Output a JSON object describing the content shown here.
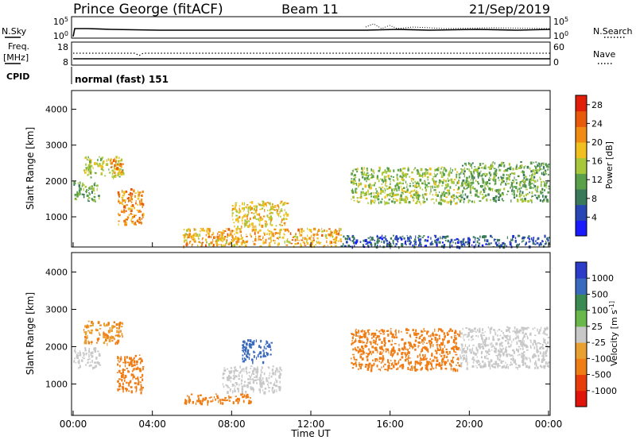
{
  "header": {
    "station": "Prince George (fitACF)",
    "beam": "Beam 11",
    "date": "21/Sep/2019"
  },
  "top_panels": {
    "nsky_label": "N.Sky",
    "nsky_ticks": [
      "10^5",
      "10^0"
    ],
    "nsearch_label": "N.Search",
    "nsearch_ticks": [
      "10^5",
      "10^0"
    ],
    "freq_label": "Freq.",
    "freq_unit": "[MHz]",
    "freq_ticks": [
      "18",
      "8"
    ],
    "nave_label": "Nave",
    "nave_ticks": [
      "60",
      "0"
    ],
    "cpid_label": "CPID",
    "cpid_value": "normal (fast) 151"
  },
  "colors": {
    "power": [
      "#1a1aff",
      "#2846b4",
      "#3a7a5a",
      "#5aa04a",
      "#a8c83a",
      "#f0c01e",
      "#f08c14",
      "#e85a0a",
      "#e01e0a"
    ],
    "velocity": [
      "#2a3cc8",
      "#3a6abe",
      "#3a8a52",
      "#6ab84a",
      "#c8c8c8",
      "#e8a030",
      "#f07c14",
      "#e83c0a",
      "#e0140a"
    ]
  },
  "chart_data": [
    {
      "type": "heatmap",
      "title": "Power",
      "ylabel": "Slant Range [km]",
      "xlabel": "",
      "ylim": [
        180,
        4500
      ],
      "yticks": [
        "1000",
        "2000",
        "3000",
        "4000"
      ],
      "xlim": [
        "00:00",
        "24:00"
      ],
      "colorbar": {
        "label": "Power [dB]",
        "ticks": [
          "4",
          "8",
          "12",
          "16",
          "20",
          "24",
          "28"
        ],
        "range": [
          0,
          30
        ]
      },
      "regions": [
        {
          "t0": 0.0,
          "t1": 1.3,
          "r0": 1450,
          "r1": 2000,
          "value": 12
        },
        {
          "t0": 0.5,
          "t1": 2.5,
          "r0": 2100,
          "r1": 2700,
          "value": 16
        },
        {
          "t0": 1.8,
          "t1": 2.5,
          "r0": 2250,
          "r1": 2650,
          "value": 22
        },
        {
          "t0": 2.2,
          "t1": 3.5,
          "r0": 800,
          "r1": 1800,
          "value": 22
        },
        {
          "t0": 8.0,
          "t1": 10.8,
          "r0": 750,
          "r1": 1450,
          "value": 18
        },
        {
          "t0": 5.5,
          "t1": 13.5,
          "r0": 200,
          "r1": 700,
          "value": 20
        },
        {
          "t0": 13.5,
          "t1": 24.0,
          "r0": 180,
          "r1": 500,
          "value": 6
        },
        {
          "t0": 14.0,
          "t1": 19.5,
          "r0": 1400,
          "r1": 2400,
          "value": 14
        },
        {
          "t0": 19.5,
          "t1": 24.0,
          "r0": 1450,
          "r1": 2550,
          "value": 12
        }
      ]
    },
    {
      "type": "heatmap",
      "title": "Velocity",
      "ylabel": "Slant Range [km]",
      "xlabel": "Time UT",
      "ylim": [
        180,
        4500
      ],
      "yticks": [
        "1000",
        "2000",
        "3000",
        "4000"
      ],
      "xticks": [
        "00:00",
        "04:00",
        "08:00",
        "12:00",
        "16:00",
        "20:00",
        "00:00"
      ],
      "xlim": [
        "00:00",
        "24:00"
      ],
      "colorbar": {
        "label": "Velocity [m s^-1]",
        "ticks": [
          "1000",
          "500",
          "100",
          "25",
          "-25",
          "-100",
          "-500",
          "-1000"
        ]
      },
      "regions": [
        {
          "t0": 0.0,
          "t1": 1.3,
          "r0": 1450,
          "r1": 2000,
          "value": 0
        },
        {
          "t0": 0.5,
          "t1": 2.5,
          "r0": 2100,
          "r1": 2700,
          "value": -100
        },
        {
          "t0": 2.2,
          "t1": 3.5,
          "r0": 800,
          "r1": 1800,
          "value": -300
        },
        {
          "t0": 5.5,
          "t1": 9.0,
          "r0": 500,
          "r1": 750,
          "value": -300
        },
        {
          "t0": 7.5,
          "t1": 10.5,
          "r0": 800,
          "r1": 1500,
          "value": 0
        },
        {
          "t0": 8.5,
          "t1": 10.0,
          "r0": 1600,
          "r1": 2200,
          "value": 150
        },
        {
          "t0": 14.0,
          "t1": 19.5,
          "r0": 1400,
          "r1": 2500,
          "value": -300
        },
        {
          "t0": 19.5,
          "t1": 24.0,
          "r0": 1450,
          "r1": 2550,
          "value": 0
        }
      ]
    }
  ]
}
